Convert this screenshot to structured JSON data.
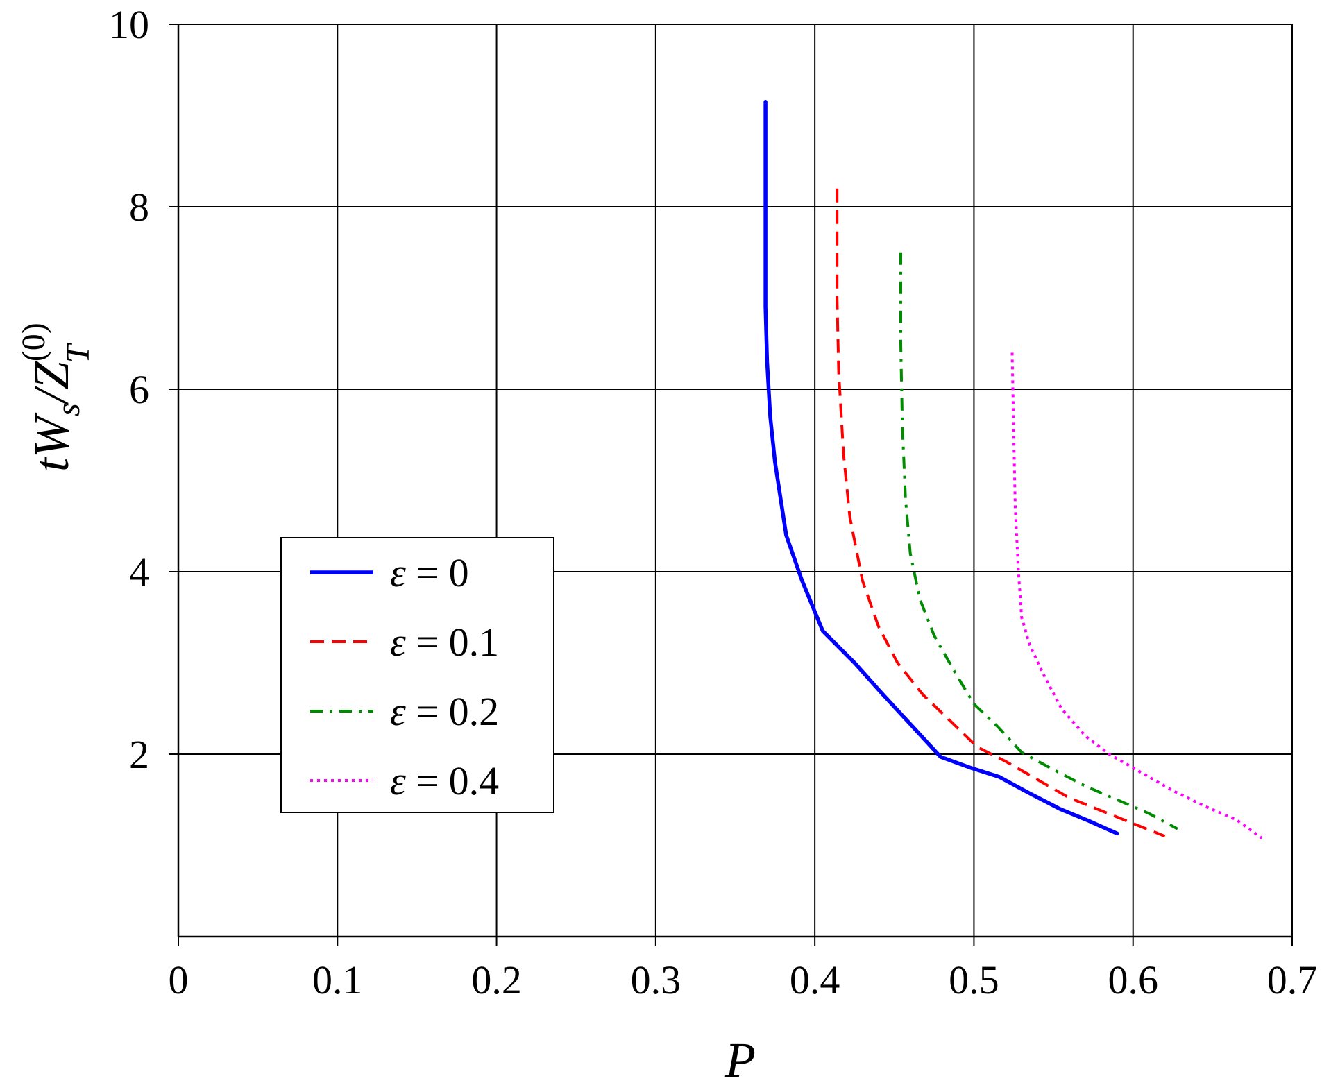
{
  "chart_data": {
    "type": "line",
    "title": "",
    "xlabel": "P",
    "ylabel": {
      "main": "tW",
      "sub1": "s",
      "mid": "/Z",
      "sup": "(0)",
      "sub2": "T"
    },
    "xlim": [
      0,
      0.7
    ],
    "ylim": [
      0,
      10
    ],
    "x_ticks": [
      0,
      0.1,
      0.2,
      0.3,
      0.4,
      0.5,
      0.6,
      0.7
    ],
    "x_tick_labels": [
      "0",
      "0.1",
      "0.2",
      "0.3",
      "0.4",
      "0.5",
      "0.6",
      "0.7"
    ],
    "y_ticks": [
      2,
      4,
      6,
      8,
      10
    ],
    "y_tick_labels": [
      "2",
      "4",
      "6",
      "8",
      "10"
    ],
    "grid": true,
    "legend_position": "center-left",
    "series": [
      {
        "name": "ε = 0",
        "label_symbol": "ε",
        "label_value": "= 0",
        "color": "#0000ff",
        "style": "solid",
        "x": [
          0.369,
          0.369,
          0.37,
          0.372,
          0.375,
          0.382,
          0.392,
          0.405,
          0.425,
          0.443,
          0.46,
          0.479,
          0.498,
          0.516,
          0.535,
          0.554,
          0.572,
          0.59
        ],
        "y": [
          9.15,
          6.9,
          6.3,
          5.7,
          5.2,
          4.4,
          3.9,
          3.35,
          3.0,
          2.65,
          2.33,
          1.97,
          1.85,
          1.75,
          1.57,
          1.4,
          1.27,
          1.13
        ]
      },
      {
        "name": "ε = 0.1",
        "label_symbol": "ε",
        "label_value": "= 0.1",
        "color": "#ff0000",
        "style": "dashed",
        "x": [
          0.414,
          0.414,
          0.415,
          0.418,
          0.422,
          0.43,
          0.44,
          0.452,
          0.468,
          0.486,
          0.502,
          0.52,
          0.54,
          0.56,
          0.58,
          0.6,
          0.62
        ],
        "y": [
          8.2,
          7.0,
          6.2,
          5.3,
          4.6,
          3.9,
          3.4,
          3.0,
          2.65,
          2.35,
          2.08,
          1.92,
          1.72,
          1.52,
          1.38,
          1.24,
          1.1
        ]
      },
      {
        "name": "ε = 0.2",
        "label_symbol": "ε",
        "label_value": "= 0.2",
        "color": "#008c00",
        "style": "dashdot",
        "x": [
          0.454,
          0.454,
          0.455,
          0.457,
          0.46,
          0.466,
          0.475,
          0.488,
          0.5,
          0.515,
          0.53,
          0.55,
          0.57,
          0.59,
          0.61,
          0.628
        ],
        "y": [
          7.5,
          6.5,
          5.6,
          4.8,
          4.2,
          3.7,
          3.3,
          2.9,
          2.55,
          2.3,
          2.02,
          1.83,
          1.65,
          1.5,
          1.35,
          1.18
        ]
      },
      {
        "name": "ε = 0.4",
        "label_symbol": "ε",
        "label_value": "= 0.4",
        "color": "#ff00ff",
        "style": "dotted",
        "x": [
          0.524,
          0.525,
          0.526,
          0.528,
          0.53,
          0.535,
          0.543,
          0.555,
          0.57,
          0.585,
          0.605,
          0.625,
          0.645,
          0.665,
          0.681
        ],
        "y": [
          6.4,
          5.5,
          4.7,
          4.0,
          3.5,
          3.2,
          2.9,
          2.5,
          2.2,
          2.0,
          1.8,
          1.6,
          1.43,
          1.28,
          1.08
        ]
      }
    ]
  }
}
